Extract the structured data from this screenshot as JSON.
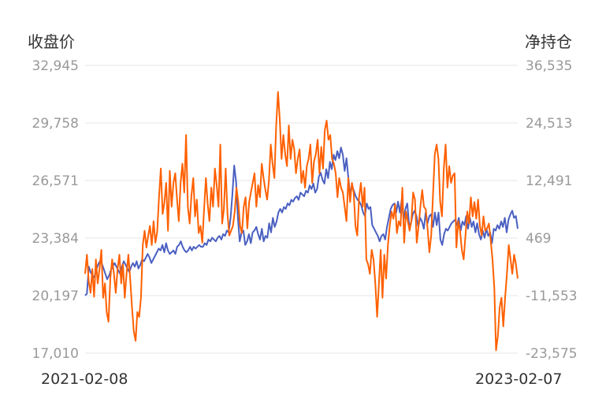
{
  "chart_data": {
    "type": "line",
    "left_axis_title": "收盘价",
    "right_axis_title": "净持仓",
    "left_ticks": [
      "32,945",
      "29,758",
      "26,571",
      "23,384",
      "20,197",
      "17,010"
    ],
    "right_ticks": [
      "36,535",
      "24,513",
      "12,491",
      "469",
      "-11,553",
      "-23,575"
    ],
    "ylim_left": [
      17010,
      32945
    ],
    "ylim_right": [
      -23575,
      36535
    ],
    "x_start": "2021-02-08",
    "x_end": "2023-02-07",
    "grid": "horizontal",
    "colors": {
      "close_price": "#4a5fc1",
      "net_position": "#ff6000",
      "grid": "#e6e6e6",
      "tick_text": "#999999"
    },
    "series": [
      {
        "axis": "left",
        "values": [
          20200,
          20300,
          21800,
          21500,
          21300,
          21200,
          21600,
          21900,
          22100,
          22000,
          21700,
          21400,
          21100,
          21300,
          21600,
          21800,
          22000,
          21800,
          21600,
          21400,
          21800,
          22100,
          21900,
          21700,
          21500,
          21800,
          22000,
          21800,
          22100,
          21700,
          21900,
          22200,
          22100,
          22300,
          22500,
          22300,
          22000,
          22200,
          22400,
          22600,
          22800,
          22700,
          23000,
          22600,
          23100,
          22700,
          22500,
          22600,
          22700,
          22500,
          22900,
          23000,
          23200,
          22900,
          22700,
          22600,
          22700,
          22900,
          22700,
          22900,
          22800,
          22900,
          23000,
          22900,
          22900,
          23100,
          23000,
          23300,
          23200,
          23400,
          23300,
          23200,
          23400,
          23500,
          23300,
          23600,
          23500,
          23800,
          23700,
          24500,
          25800,
          27400,
          26500,
          24500,
          23200,
          23700,
          23800,
          23000,
          23200,
          23600,
          23100,
          23700,
          23800,
          24000,
          23600,
          23300,
          23900,
          23200,
          23500,
          23400,
          24200,
          23700,
          24500,
          24000,
          24300,
          24800,
          25000,
          24800,
          25100,
          25000,
          25300,
          25200,
          25500,
          25400,
          25600,
          25700,
          25500,
          25900,
          25800,
          25700,
          26000,
          25900,
          26300,
          26100,
          26400,
          25900,
          26100,
          26800,
          27000,
          26600,
          26400,
          27200,
          26700,
          27600,
          27200,
          28000,
          27700,
          28200,
          27800,
          28400,
          28000,
          27100,
          27800,
          26700,
          25800,
          26300,
          26000,
          25700,
          25500,
          25400,
          25200,
          24800,
          24600,
          25300,
          25000,
          25100,
          24100,
          23900,
          23700,
          23500,
          23200,
          23500,
          23600,
          23300,
          24000,
          24500,
          25000,
          25200,
          25300,
          24800,
          25400,
          24800,
          25500,
          24400,
          25000,
          25300,
          24100,
          24200,
          24700,
          24900,
          24600,
          24000,
          24500,
          24300,
          23900,
          24800,
          24200,
          24600,
          24700,
          24000,
          24800,
          24100,
          24800,
          23300,
          23000,
          23600,
          23900,
          23800,
          24000,
          24200,
          24300,
          24400,
          24100,
          24500,
          23800,
          24300,
          24100,
          24600,
          23900,
          24500,
          24000,
          24300,
          23700,
          24200,
          23600,
          23300,
          23800,
          23400,
          23900,
          23500,
          23700,
          23100,
          23900,
          23800,
          24100,
          23900,
          24300,
          24000,
          24500,
          23700,
          24400,
          24700,
          24900,
          24500,
          24600,
          23900
        ]
      },
      {
        "axis": "right",
        "values": [
          -7000,
          -3000,
          -8500,
          -11000,
          -6000,
          -11800,
          -4000,
          -9000,
          -6000,
          -2000,
          -12000,
          -9000,
          -15000,
          -17000,
          -8000,
          -4000,
          -7000,
          -11000,
          -6000,
          -3000,
          -9000,
          -5000,
          -12000,
          -7000,
          -3000,
          -8000,
          -14000,
          -19000,
          -21000,
          -15000,
          -16000,
          -12000,
          -1000,
          2000,
          -1500,
          1000,
          3000,
          -1000,
          4000,
          -500,
          1800,
          9000,
          15000,
          5500,
          8000,
          12000,
          2000,
          14500,
          7000,
          12000,
          14000,
          8500,
          4000,
          12000,
          16000,
          10000,
          22000,
          7000,
          3500,
          9500,
          13000,
          5000,
          8500,
          1500,
          3000,
          -500,
          6500,
          13000,
          7500,
          4000,
          11000,
          7000,
          15000,
          11500,
          7000,
          20000,
          3500,
          6500,
          15000,
          5500,
          1000,
          2000,
          3000,
          6000,
          11000,
          8000,
          3000,
          1500,
          7000,
          9000,
          2500,
          8000,
          10000,
          12000,
          14000,
          7000,
          11500,
          9000,
          16000,
          13000,
          10500,
          8500,
          12500,
          20000,
          16000,
          13000,
          24000,
          31000,
          25000,
          17000,
          22000,
          18000,
          15500,
          24000,
          17000,
          21000,
          19000,
          14000,
          17000,
          19000,
          12000,
          14500,
          11000,
          15500,
          17000,
          20000,
          12000,
          16500,
          18000,
          21000,
          14000,
          19500,
          15000,
          23000,
          25000,
          21000,
          22000,
          17000,
          16000,
          14000,
          9000,
          13000,
          11000,
          10000,
          7000,
          4000,
          13000,
          8000,
          12000,
          10000,
          3000,
          1000,
          9000,
          12000,
          7000,
          11000,
          -4000,
          -5000,
          -7000,
          -2000,
          -4000,
          -9000,
          -16000,
          -9000,
          -2000,
          -12000,
          -3000,
          -8000,
          -1000,
          3000,
          6000,
          4500,
          7500,
          1500,
          4000,
          3000,
          11000,
          -500,
          6000,
          4000,
          2000,
          4000,
          10000,
          8500,
          -500,
          3000,
          7000,
          10500,
          7000,
          6500,
          2500,
          -2500,
          1000,
          9500,
          18000,
          20000,
          17000,
          8000,
          5000,
          15000,
          20000,
          11000,
          15500,
          12000,
          13500,
          14000,
          -1500,
          4000,
          2000,
          -2000,
          -4000,
          1000,
          6000,
          3500,
          9000,
          5000,
          8000,
          4500,
          8500,
          3000,
          1000,
          5000,
          2000,
          2500,
          3500,
          0,
          -4000,
          -10000,
          -23000,
          -20000,
          -14000,
          -12000,
          -18000,
          -12000,
          -7000,
          -1000,
          -4000,
          -7000,
          -3000,
          -5000,
          -8000
        ]
      }
    ]
  }
}
